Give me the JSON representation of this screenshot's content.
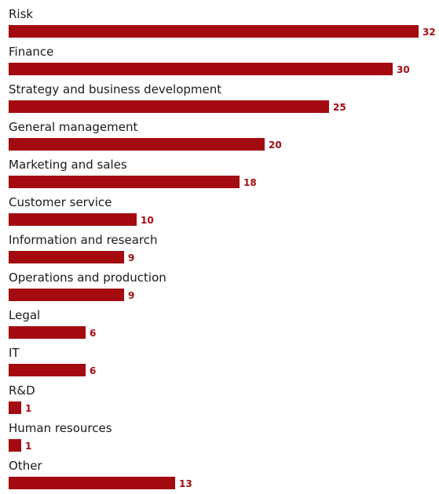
{
  "chart_data": {
    "type": "bar",
    "orientation": "horizontal",
    "categories": [
      "Risk",
      "Finance",
      "Strategy and business development",
      "General management",
      "Marketing and sales",
      "Customer service",
      "Information and research",
      "Operations and production",
      "Legal",
      "IT",
      "R&D",
      "Human resources",
      "Other"
    ],
    "values": [
      32,
      30,
      25,
      20,
      18,
      10,
      9,
      9,
      6,
      6,
      1,
      1,
      13
    ],
    "value_labels": [
      "32",
      "30",
      "25",
      "20",
      "18",
      "10",
      "9",
      "9",
      "6",
      "6",
      "1",
      "1",
      "13"
    ],
    "bar_color": "#a30b10",
    "xlim": [
      0,
      32
    ],
    "grid": false,
    "legend": "none"
  }
}
